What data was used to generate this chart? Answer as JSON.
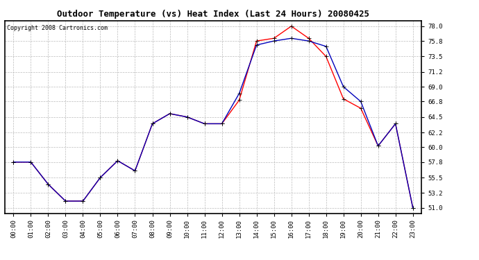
{
  "title": "Outdoor Temperature (vs) Heat Index (Last 24 Hours) 20080425",
  "copyright": "Copyright 2008 Cartronics.com",
  "hours": [
    "00:00",
    "01:00",
    "02:00",
    "03:00",
    "04:00",
    "05:00",
    "06:00",
    "07:00",
    "08:00",
    "09:00",
    "10:00",
    "11:00",
    "12:00",
    "13:00",
    "14:00",
    "15:00",
    "16:00",
    "17:00",
    "18:00",
    "19:00",
    "20:00",
    "21:00",
    "22:00",
    "23:00"
  ],
  "outdoor_temp": [
    57.8,
    57.8,
    54.5,
    52.0,
    52.0,
    55.5,
    58.0,
    56.5,
    63.5,
    65.0,
    64.5,
    63.5,
    63.5,
    67.0,
    75.8,
    76.2,
    78.0,
    76.2,
    73.5,
    67.2,
    65.8,
    60.2,
    63.5,
    51.0
  ],
  "heat_index": [
    57.8,
    57.8,
    54.5,
    52.0,
    52.0,
    55.5,
    58.0,
    56.5,
    63.5,
    65.0,
    64.5,
    63.5,
    63.5,
    68.0,
    75.2,
    75.8,
    76.2,
    75.8,
    75.0,
    69.0,
    66.8,
    60.2,
    63.5,
    51.0
  ],
  "outdoor_color": "#ff0000",
  "heat_index_color": "#0000bb",
  "bg_color": "#ffffff",
  "plot_bg_color": "#ffffff",
  "grid_color": "#bbbbbb",
  "ylim_min": 51.0,
  "ylim_max": 78.0,
  "yticks": [
    51.0,
    53.2,
    55.5,
    57.8,
    60.0,
    62.2,
    64.5,
    66.8,
    69.0,
    71.2,
    73.5,
    75.8,
    78.0
  ],
  "title_fontsize": 9,
  "copyright_fontsize": 6,
  "tick_fontsize": 6.5,
  "marker_size": 2.5,
  "line_width": 1.0
}
